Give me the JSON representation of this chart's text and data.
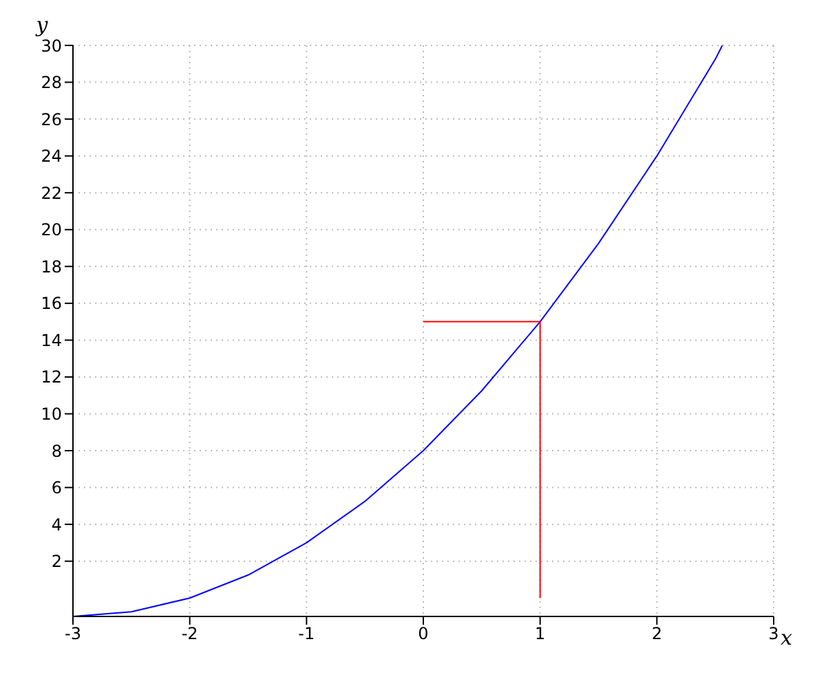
{
  "chart_data": {
    "type": "line",
    "xlabel": "x",
    "ylabel": "y",
    "xlim": [
      -3,
      3
    ],
    "ylim": [
      -1,
      30
    ],
    "xticks": [
      -3,
      -2,
      -1,
      0,
      1,
      2,
      3
    ],
    "yticks": [
      2,
      4,
      6,
      8,
      10,
      12,
      14,
      16,
      18,
      20,
      22,
      24,
      26,
      28,
      30
    ],
    "grid": true,
    "marker": "none",
    "line_style": "solid",
    "series": [
      {
        "color": "#0000ff",
        "x": [
          -3,
          -2.5,
          -2,
          -1.5,
          -1,
          -0.5,
          0,
          0.5,
          1,
          1.5,
          2,
          2.5,
          2.56
        ],
        "values": [
          -1,
          -0.75,
          0,
          1.25,
          3,
          5.25,
          8,
          11.25,
          15,
          19.25,
          24,
          29.25,
          30
        ]
      },
      {
        "color": "#ff0000",
        "x": [
          0,
          1,
          1
        ],
        "values": [
          15,
          15,
          0
        ]
      }
    ]
  }
}
